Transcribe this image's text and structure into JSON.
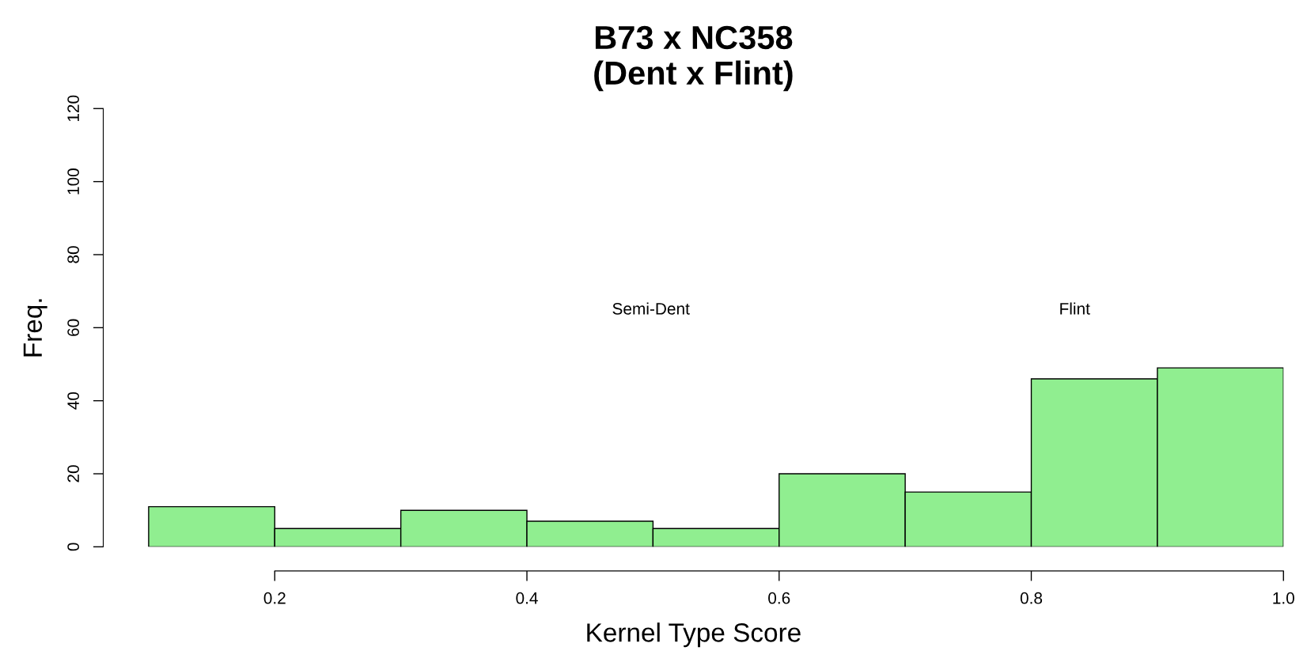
{
  "chart_data": {
    "type": "histogram",
    "title": "B73 x NC358\n(Dent x Flint)",
    "xlabel": "Kernel Type Score",
    "ylabel": "Freq.",
    "bins": [
      0.1,
      0.2,
      0.3,
      0.4,
      0.5,
      0.6,
      0.7,
      0.8,
      0.9,
      1.0
    ],
    "values": [
      11,
      5,
      10,
      7,
      5,
      20,
      15,
      46,
      49
    ],
    "color": "#90ee90",
    "xlim": [
      0.064,
      1.0
    ],
    "xticks": [
      0.2,
      0.4,
      0.6,
      0.8,
      {
        "value": 1.0,
        "label": "1.0"
      }
    ],
    "ylim": [
      0,
      120
    ],
    "yticks": [
      0,
      20,
      40,
      60,
      80,
      100,
      120
    ],
    "grid": false,
    "annotations": [
      "Semi-Dent",
      "Flint"
    ]
  }
}
